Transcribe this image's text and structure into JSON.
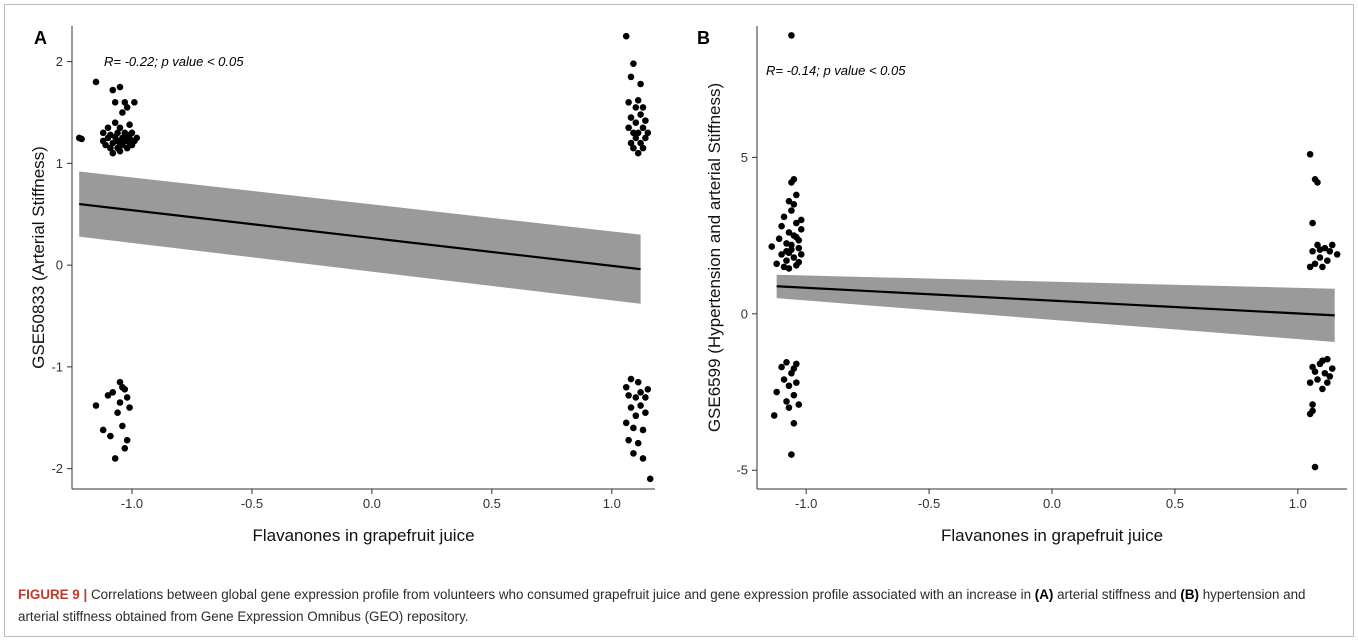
{
  "chart_data": [
    {
      "panel": "A",
      "type": "scatter",
      "annotation": "R= -0.22; p value < 0.05",
      "xlabel": "Flavanones in grapefruit juice",
      "ylabel": "GSE50833 (Arterial Stiffness)",
      "xlim": [
        -1.25,
        1.18
      ],
      "ylim": [
        -2.2,
        2.35
      ],
      "x_ticks": [
        -1.0,
        -0.5,
        0.0,
        0.5,
        1.0
      ],
      "x_tick_labels": [
        "-1.0",
        "-0.5",
        "0.0",
        "0.5",
        "1.0"
      ],
      "y_ticks": [
        -2,
        -1,
        0,
        1,
        2
      ],
      "y_tick_labels": [
        "-2",
        "-1",
        "0",
        "1",
        "2"
      ],
      "grid": false,
      "regression": {
        "x": [
          -1.22,
          1.12
        ],
        "y": [
          0.6,
          -0.04
        ],
        "ci_lower": [
          0.28,
          -0.38
        ],
        "ci_upper": [
          0.92,
          0.3
        ]
      },
      "points": [
        [
          -1.22,
          1.25
        ],
        [
          -1.21,
          1.24
        ],
        [
          -1.15,
          1.8
        ],
        [
          -1.12,
          1.22
        ],
        [
          -1.12,
          1.3
        ],
        [
          -1.11,
          1.18
        ],
        [
          -1.1,
          1.25
        ],
        [
          -1.1,
          1.35
        ],
        [
          -1.09,
          1.15
        ],
        [
          -1.09,
          1.28
        ],
        [
          -1.08,
          1.72
        ],
        [
          -1.08,
          1.2
        ],
        [
          -1.08,
          1.1
        ],
        [
          -1.07,
          1.26
        ],
        [
          -1.07,
          1.4
        ],
        [
          -1.07,
          1.6
        ],
        [
          -1.06,
          1.15
        ],
        [
          -1.06,
          1.3
        ],
        [
          -1.06,
          1.22
        ],
        [
          -1.05,
          1.75
        ],
        [
          -1.05,
          1.2
        ],
        [
          -1.05,
          1.12
        ],
        [
          -1.05,
          1.35
        ],
        [
          -1.04,
          1.5
        ],
        [
          -1.04,
          1.25
        ],
        [
          -1.04,
          1.18
        ],
        [
          -1.03,
          1.6
        ],
        [
          -1.03,
          1.3
        ],
        [
          -1.03,
          1.22
        ],
        [
          -1.02,
          1.15
        ],
        [
          -1.02,
          1.28
        ],
        [
          -1.02,
          1.55
        ],
        [
          -1.01,
          1.2
        ],
        [
          -1.01,
          1.38
        ],
        [
          -1.01,
          1.25
        ],
        [
          -1.0,
          1.18
        ],
        [
          -1.0,
          1.3
        ],
        [
          -0.99,
          1.22
        ],
        [
          -0.99,
          1.6
        ],
        [
          -0.98,
          1.25
        ],
        [
          -1.15,
          -1.38
        ],
        [
          -1.12,
          -1.62
        ],
        [
          -1.1,
          -1.28
        ],
        [
          -1.09,
          -1.68
        ],
        [
          -1.08,
          -1.25
        ],
        [
          -1.07,
          -1.9
        ],
        [
          -1.06,
          -1.45
        ],
        [
          -1.05,
          -1.15
        ],
        [
          -1.05,
          -1.35
        ],
        [
          -1.04,
          -1.58
        ],
        [
          -1.03,
          -1.8
        ],
        [
          -1.03,
          -1.22
        ],
        [
          -1.02,
          -1.3
        ],
        [
          -1.02,
          -1.72
        ],
        [
          -1.01,
          -1.4
        ],
        [
          -1.04,
          -1.2
        ],
        [
          1.06,
          2.25
        ],
        [
          1.07,
          1.35
        ],
        [
          1.07,
          1.6
        ],
        [
          1.08,
          1.2
        ],
        [
          1.08,
          1.85
        ],
        [
          1.08,
          1.45
        ],
        [
          1.09,
          1.98
        ],
        [
          1.09,
          1.3
        ],
        [
          1.09,
          1.15
        ],
        [
          1.1,
          1.55
        ],
        [
          1.1,
          1.25
        ],
        [
          1.1,
          1.4
        ],
        [
          1.11,
          1.1
        ],
        [
          1.11,
          1.62
        ],
        [
          1.11,
          1.3
        ],
        [
          1.12,
          1.78
        ],
        [
          1.12,
          1.2
        ],
        [
          1.12,
          1.48
        ],
        [
          1.13,
          1.35
        ],
        [
          1.13,
          1.15
        ],
        [
          1.13,
          1.55
        ],
        [
          1.14,
          1.25
        ],
        [
          1.14,
          1.42
        ],
        [
          1.15,
          1.3
        ],
        [
          1.06,
          -1.2
        ],
        [
          1.06,
          -1.55
        ],
        [
          1.07,
          -1.72
        ],
        [
          1.07,
          -1.28
        ],
        [
          1.08,
          -1.4
        ],
        [
          1.08,
          -1.12
        ],
        [
          1.09,
          -1.6
        ],
        [
          1.09,
          -1.85
        ],
        [
          1.1,
          -1.3
        ],
        [
          1.1,
          -1.48
        ],
        [
          1.11,
          -1.15
        ],
        [
          1.11,
          -1.75
        ],
        [
          1.12,
          -1.38
        ],
        [
          1.12,
          -1.25
        ],
        [
          1.13,
          -1.62
        ],
        [
          1.13,
          -1.9
        ],
        [
          1.14,
          -1.45
        ],
        [
          1.15,
          -1.22
        ],
        [
          1.16,
          -2.1
        ],
        [
          1.14,
          -1.3
        ]
      ]
    },
    {
      "panel": "B",
      "type": "scatter",
      "annotation": "R= -0.14; p value < 0.05",
      "xlabel": "Flavanones in grapefruit juice",
      "ylabel": "GSE6599 (Hypertension and arterial Stiffness)",
      "xlim": [
        -1.2,
        1.2
      ],
      "ylim": [
        -5.6,
        9.2
      ],
      "x_ticks": [
        -1.0,
        -0.5,
        0.0,
        0.5,
        1.0
      ],
      "x_tick_labels": [
        "-1.0",
        "-0.5",
        "0.0",
        "0.5",
        "1.0"
      ],
      "y_ticks": [
        -5,
        0,
        5
      ],
      "y_tick_labels": [
        "-5",
        "0",
        "5"
      ],
      "grid": false,
      "regression": {
        "x": [
          -1.12,
          1.15
        ],
        "y": [
          0.88,
          -0.05
        ],
        "ci_lower": [
          0.5,
          -0.9
        ],
        "ci_upper": [
          1.25,
          0.8
        ]
      },
      "points": [
        [
          -1.06,
          8.9
        ],
        [
          -1.14,
          2.15
        ],
        [
          -1.12,
          1.6
        ],
        [
          -1.11,
          2.4
        ],
        [
          -1.1,
          1.9
        ],
        [
          -1.1,
          2.8
        ],
        [
          -1.09,
          1.5
        ],
        [
          -1.09,
          3.1
        ],
        [
          -1.08,
          2.0
        ],
        [
          -1.08,
          1.7
        ],
        [
          -1.07,
          2.6
        ],
        [
          -1.07,
          3.6
        ],
        [
          -1.07,
          1.45
        ],
        [
          -1.06,
          2.2
        ],
        [
          -1.06,
          4.2
        ],
        [
          -1.06,
          3.3
        ],
        [
          -1.05,
          1.8
        ],
        [
          -1.05,
          2.5
        ],
        [
          -1.05,
          4.3
        ],
        [
          -1.04,
          2.9
        ],
        [
          -1.04,
          1.55
        ],
        [
          -1.04,
          3.8
        ],
        [
          -1.03,
          2.1
        ],
        [
          -1.03,
          2.35
        ],
        [
          -1.03,
          1.65
        ],
        [
          -1.02,
          3.0
        ],
        [
          -1.02,
          2.7
        ],
        [
          -1.02,
          1.9
        ],
        [
          -1.08,
          2.25
        ],
        [
          -1.06,
          2.05
        ],
        [
          -1.04,
          2.45
        ],
        [
          -1.05,
          3.5
        ],
        [
          -1.07,
          1.95
        ],
        [
          -1.13,
          -3.25
        ],
        [
          -1.12,
          -2.5
        ],
        [
          -1.1,
          -1.7
        ],
        [
          -1.09,
          -2.1
        ],
        [
          -1.08,
          -2.8
        ],
        [
          -1.08,
          -1.55
        ],
        [
          -1.07,
          -3.0
        ],
        [
          -1.07,
          -2.3
        ],
        [
          -1.06,
          -1.9
        ],
        [
          -1.06,
          -4.5
        ],
        [
          -1.05,
          -2.6
        ],
        [
          -1.05,
          -3.5
        ],
        [
          -1.04,
          -1.6
        ],
        [
          -1.04,
          -2.2
        ],
        [
          -1.03,
          -2.9
        ],
        [
          -1.05,
          -1.75
        ],
        [
          1.05,
          5.1
        ],
        [
          1.06,
          2.9
        ],
        [
          1.06,
          2.0
        ],
        [
          1.07,
          4.3
        ],
        [
          1.07,
          1.6
        ],
        [
          1.08,
          4.2
        ],
        [
          1.08,
          2.2
        ],
        [
          1.09,
          1.8
        ],
        [
          1.1,
          1.5
        ],
        [
          1.11,
          2.1
        ],
        [
          1.12,
          1.7
        ],
        [
          1.13,
          2.0
        ],
        [
          1.14,
          2.2
        ],
        [
          1.16,
          1.9
        ],
        [
          1.05,
          1.5
        ],
        [
          1.09,
          2.05
        ],
        [
          1.05,
          -2.2
        ],
        [
          1.05,
          -3.2
        ],
        [
          1.06,
          -1.7
        ],
        [
          1.06,
          -2.9
        ],
        [
          1.07,
          -4.9
        ],
        [
          1.07,
          -1.85
        ],
        [
          1.08,
          -2.1
        ],
        [
          1.09,
          -1.6
        ],
        [
          1.1,
          -2.4
        ],
        [
          1.1,
          -1.5
        ],
        [
          1.11,
          -1.9
        ],
        [
          1.12,
          -2.2
        ],
        [
          1.12,
          -1.45
        ],
        [
          1.13,
          -2.0
        ],
        [
          1.14,
          -1.75
        ],
        [
          1.06,
          -3.1
        ]
      ]
    }
  ],
  "caption": {
    "label": "FIGURE 9 |",
    "part1": " Correlations between global gene expression profile from volunteers who consumed grapefruit juice and gene expression profile associated with an increase in ",
    "ref_a": "(A)",
    "part2": " arterial stiffness and ",
    "ref_b": "(B)",
    "part3": " hypertension and arterial stiffness obtained from Gene Expression Omnibus (GEO) repository."
  }
}
